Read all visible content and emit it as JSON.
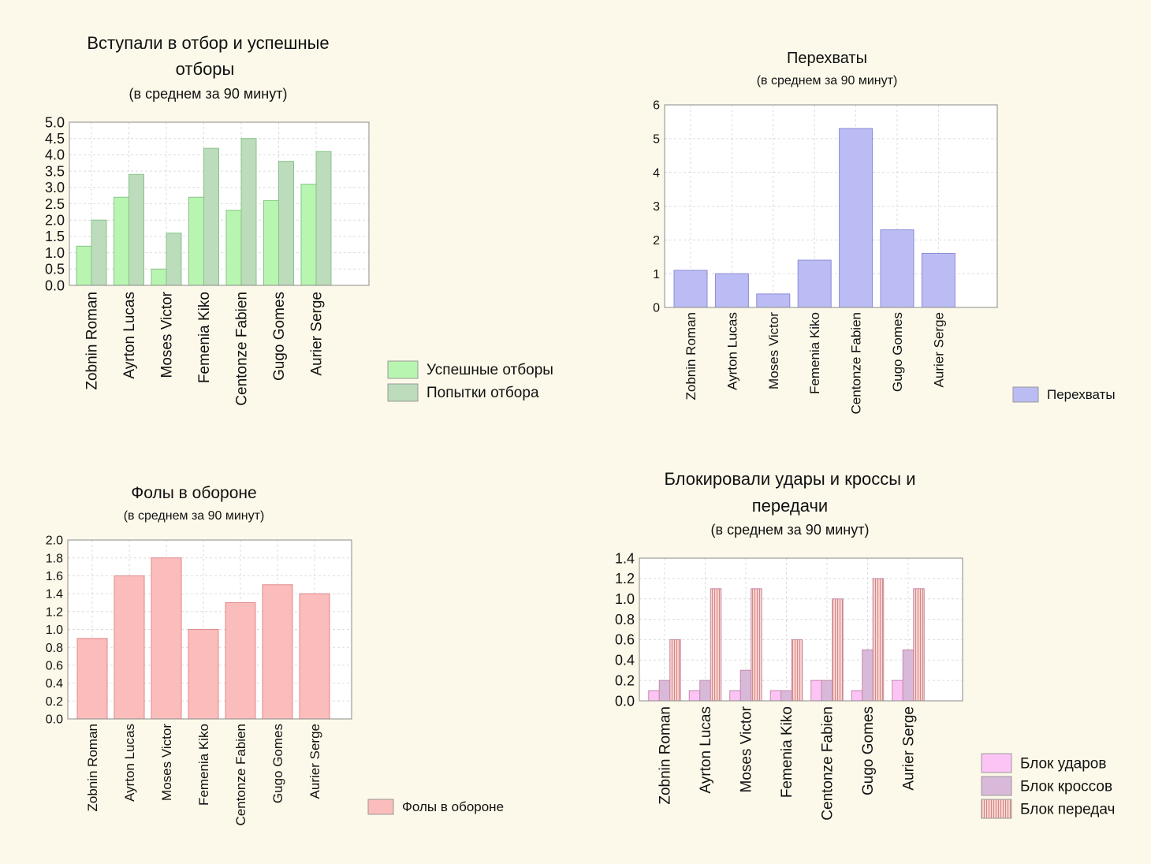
{
  "chart_data": [
    {
      "type": "bar",
      "title": "Вступали в отбор и успешные отборы",
      "title_lines": [
        "Вступали в отбор и успешные",
        "отборы"
      ],
      "subtitle": "(в среднем за 90 минут)",
      "categories": [
        "Zobnin Roman",
        "Ayrton Lucas",
        "Moses Victor",
        "Femenia Kiko",
        "Centonze Fabien",
        "Gugo Gomes",
        "Aurier Serge"
      ],
      "series": [
        {
          "name": "Успешные отборы",
          "values": [
            1.2,
            2.7,
            0.5,
            2.7,
            2.3,
            2.6,
            3.1
          ],
          "color": "#b8f5b0"
        },
        {
          "name": "Попытки отбора",
          "values": [
            2.0,
            3.4,
            1.6,
            4.2,
            4.5,
            3.8,
            4.1
          ],
          "color": "#bcdcbc"
        }
      ],
      "ylim": [
        0,
        5
      ],
      "yticks": [
        "0.0",
        "0.5",
        "1.0",
        "1.5",
        "2.0",
        "2.5",
        "3.0",
        "3.5",
        "4.0",
        "4.5",
        "5.0"
      ],
      "grid": true,
      "legend": "bottom-right"
    },
    {
      "type": "bar",
      "title": "Перехваты",
      "subtitle": "(в среднем за 90 минут)",
      "categories": [
        "Zobnin Roman",
        "Ayrton Lucas",
        "Moses Victor",
        "Femenia Kiko",
        "Centonze Fabien",
        "Gugo Gomes",
        "Aurier Serge"
      ],
      "series": [
        {
          "name": "Перехваты",
          "values": [
            1.1,
            1.0,
            0.4,
            1.4,
            5.3,
            2.3,
            1.6
          ],
          "color": "#bcbcf5"
        }
      ],
      "ylim": [
        0,
        6
      ],
      "yticks": [
        "0",
        "1",
        "2",
        "3",
        "4",
        "5",
        "6"
      ],
      "grid": true,
      "legend": "bottom-right"
    },
    {
      "type": "bar",
      "title": "Фолы в обороне",
      "subtitle": "(в среднем за 90 минут)",
      "categories": [
        "Zobnin Roman",
        "Ayrton Lucas",
        "Moses Victor",
        "Femenia Kiko",
        "Centonze Fabien",
        "Gugo Gomes",
        "Aurier Serge"
      ],
      "series": [
        {
          "name": "Фолы в обороне",
          "values": [
            0.9,
            1.6,
            1.8,
            1.0,
            1.3,
            1.5,
            1.4
          ],
          "color": "#fbbcbc"
        }
      ],
      "ylim": [
        0,
        2
      ],
      "yticks": [
        "0.0",
        "0.2",
        "0.4",
        "0.6",
        "0.8",
        "1.0",
        "1.2",
        "1.4",
        "1.6",
        "1.8",
        "2.0"
      ],
      "grid": true,
      "legend": "bottom-right"
    },
    {
      "type": "bar",
      "title": "Блокировали удары и кроссы и передачи",
      "title_lines": [
        "Блокировали удары и кроссы и",
        "передачи"
      ],
      "subtitle": "(в среднем за 90 минут)",
      "categories": [
        "Zobnin Roman",
        "Ayrton Lucas",
        "Moses Victor",
        "Femenia Kiko",
        "Centonze Fabien",
        "Gugo Gomes",
        "Aurier Serge"
      ],
      "series": [
        {
          "name": "Блок ударов",
          "values": [
            0.1,
            0.1,
            0.1,
            0.1,
            0.2,
            0.1,
            0.2
          ],
          "color": "#fbc4f5"
        },
        {
          "name": "Блок кроссов",
          "values": [
            0.2,
            0.2,
            0.3,
            0.1,
            0.2,
            0.5,
            0.5
          ],
          "color": "#d9b9d9"
        },
        {
          "name": "Блок передач",
          "values": [
            0.6,
            1.1,
            1.1,
            0.6,
            1.0,
            1.2,
            1.1
          ],
          "color": "#f5c4c4",
          "pattern": "vertical-stripes"
        }
      ],
      "ylim": [
        0,
        1.4
      ],
      "yticks": [
        "0.0",
        "0.2",
        "0.4",
        "0.6",
        "0.8",
        "1.0",
        "1.2",
        "1.4"
      ],
      "grid": true,
      "legend": "bottom-right"
    }
  ]
}
